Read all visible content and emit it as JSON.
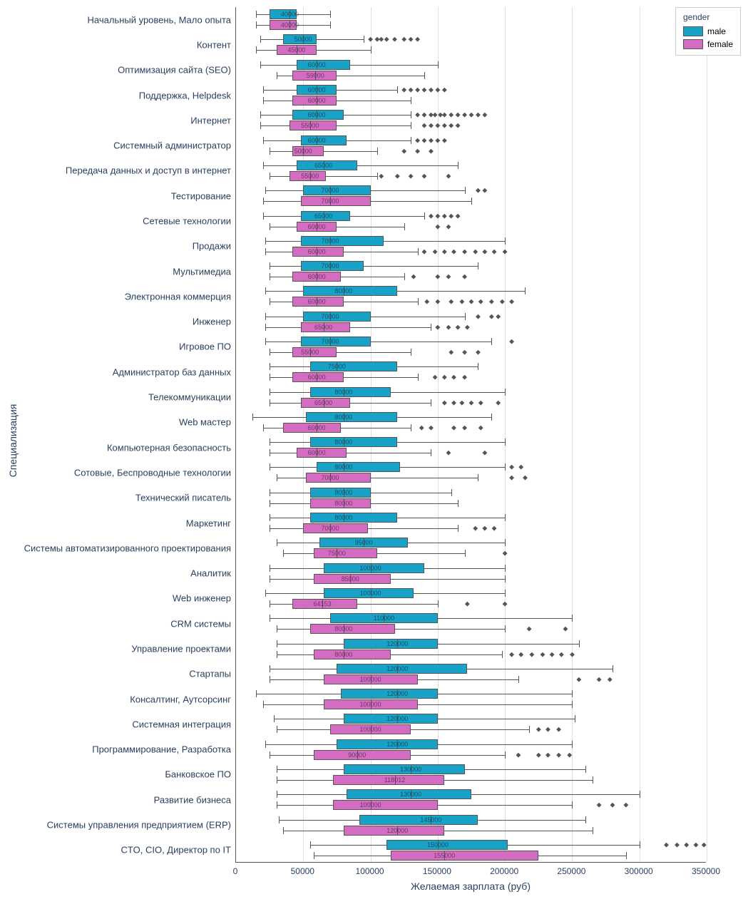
{
  "chart": {
    "type": "grouped-horizontal-boxplot",
    "x_axis_title": "Желаемая зарплата (руб)",
    "y_axis_title": "Специализация",
    "xlim": [
      0,
      350000
    ],
    "xtick_step": 50000,
    "background_color": "#ffffff",
    "grid_color": "#e0e0e0",
    "text_color": "#2a3f5f",
    "box_border_color": "#555555",
    "label_fontsize": 13,
    "axis_title_fontsize": 14,
    "median_label_fontsize": 9
  },
  "legend": {
    "title": "gender",
    "items": [
      {
        "label": "male",
        "color": "#18a2c8"
      },
      {
        "label": "female",
        "color": "#d46cc2"
      }
    ]
  },
  "colors": {
    "male": "#18a2c8",
    "female": "#d46cc2"
  },
  "x_ticks": [
    "0",
    "50000",
    "100000",
    "150000",
    "200000",
    "250000",
    "300000",
    "350000"
  ],
  "categories": [
    {
      "label": "Начальный уровень, Мало опыта",
      "male": {
        "low": 15000,
        "q1": 25000,
        "median": 40000,
        "q3": 45000,
        "high": 70000,
        "median_label": "40000",
        "outliers": []
      },
      "female": {
        "low": 15000,
        "q1": 25000,
        "median": 40000,
        "q3": 45000,
        "high": 70000,
        "median_label": "40000",
        "outliers": []
      }
    },
    {
      "label": "Контент",
      "male": {
        "low": 18000,
        "q1": 35000,
        "median": 50000,
        "q3": 60000,
        "high": 95000,
        "median_label": "50000",
        "outliers": [
          100000,
          105000,
          108000,
          112000,
          118000,
          125000,
          130000,
          135000
        ]
      },
      "female": {
        "low": 15000,
        "q1": 30000,
        "median": 45000,
        "q3": 60000,
        "high": 100000,
        "median_label": "45000",
        "outliers": []
      }
    },
    {
      "label": "Оптимизация сайта (SEO)",
      "male": {
        "low": 18000,
        "q1": 45000,
        "median": 60000,
        "q3": 85000,
        "high": 150000,
        "median_label": "60000",
        "outliers": []
      },
      "female": {
        "low": 30000,
        "q1": 42000,
        "median": 59000,
        "q3": 75000,
        "high": 140000,
        "median_label": "59000",
        "outliers": []
      }
    },
    {
      "label": "Поддержка, Helpdesk",
      "male": {
        "low": 20000,
        "q1": 45000,
        "median": 60000,
        "q3": 75000,
        "high": 120000,
        "median_label": "60000",
        "outliers": [
          125000,
          130000,
          135000,
          140000,
          145000,
          150000,
          155000
        ]
      },
      "female": {
        "low": 20000,
        "q1": 42000,
        "median": 60000,
        "q3": 75000,
        "high": 130000,
        "median_label": "60000",
        "outliers": []
      }
    },
    {
      "label": "Интернет",
      "male": {
        "low": 18000,
        "q1": 42000,
        "median": 60000,
        "q3": 80000,
        "high": 130000,
        "median_label": "60000",
        "outliers": [
          135000,
          140000,
          145000,
          148000,
          152000,
          155000,
          160000,
          165000,
          170000,
          175000,
          180000,
          185000
        ]
      },
      "female": {
        "low": 18000,
        "q1": 40000,
        "median": 55000,
        "q3": 75000,
        "high": 130000,
        "median_label": "55000",
        "outliers": [
          140000,
          145000,
          150000,
          155000,
          160000,
          165000
        ]
      }
    },
    {
      "label": "Системный администратор",
      "male": {
        "low": 20000,
        "q1": 48000,
        "median": 60000,
        "q3": 82000,
        "high": 130000,
        "median_label": "60000",
        "outliers": [
          135000,
          140000,
          145000,
          150000,
          155000
        ]
      },
      "female": {
        "low": 25000,
        "q1": 42000,
        "median": 50000,
        "q3": 65000,
        "high": 105000,
        "median_label": "50000",
        "outliers": [
          125000,
          135000,
          145000
        ]
      }
    },
    {
      "label": "Передача данных и доступ в интернет",
      "male": {
        "low": 20000,
        "q1": 45000,
        "median": 65000,
        "q3": 90000,
        "high": 165000,
        "median_label": "65000",
        "outliers": []
      },
      "female": {
        "low": 25000,
        "q1": 40000,
        "median": 55000,
        "q3": 67000,
        "high": 105000,
        "median_label": "55000",
        "outliers": [
          108000,
          120000,
          130000,
          140000,
          158000
        ]
      }
    },
    {
      "label": "Тестирование",
      "male": {
        "low": 22000,
        "q1": 50000,
        "median": 70000,
        "q3": 100000,
        "high": 170000,
        "median_label": "70000",
        "outliers": [
          180000,
          185000
        ]
      },
      "female": {
        "low": 20000,
        "q1": 48000,
        "median": 70000,
        "q3": 100000,
        "high": 175000,
        "median_label": "70000",
        "outliers": []
      }
    },
    {
      "label": "Сетевые технологии",
      "male": {
        "low": 20000,
        "q1": 48000,
        "median": 65000,
        "q3": 85000,
        "high": 140000,
        "median_label": "65000",
        "outliers": [
          145000,
          150000,
          155000,
          160000,
          165000
        ]
      },
      "female": {
        "low": 25000,
        "q1": 45000,
        "median": 60000,
        "q3": 75000,
        "high": 125000,
        "median_label": "60000",
        "outliers": [
          150000,
          158000
        ]
      }
    },
    {
      "label": "Продажи",
      "male": {
        "low": 22000,
        "q1": 48000,
        "median": 70000,
        "q3": 110000,
        "high": 200000,
        "median_label": "70000",
        "outliers": []
      },
      "female": {
        "low": 22000,
        "q1": 42000,
        "median": 60000,
        "q3": 80000,
        "high": 135000,
        "median_label": "60000",
        "outliers": [
          140000,
          148000,
          155000,
          162000,
          170000,
          178000,
          185000,
          192000,
          200000
        ]
      }
    },
    {
      "label": "Мультимедиа",
      "male": {
        "low": 25000,
        "q1": 48000,
        "median": 70000,
        "q3": 95000,
        "high": 180000,
        "median_label": "70000",
        "outliers": []
      },
      "female": {
        "low": 25000,
        "q1": 42000,
        "median": 60000,
        "q3": 78000,
        "high": 125000,
        "median_label": "60000",
        "outliers": [
          132000,
          150000,
          158000,
          170000
        ]
      }
    },
    {
      "label": "Электронная коммерция",
      "male": {
        "low": 22000,
        "q1": 50000,
        "median": 80000,
        "q3": 120000,
        "high": 215000,
        "median_label": "80000",
        "outliers": []
      },
      "female": {
        "low": 25000,
        "q1": 42000,
        "median": 60000,
        "q3": 80000,
        "high": 135000,
        "median_label": "60000",
        "outliers": [
          142000,
          150000,
          160000,
          168000,
          175000,
          182000,
          190000,
          198000,
          205000
        ]
      }
    },
    {
      "label": "Инженер",
      "male": {
        "low": 22000,
        "q1": 50000,
        "median": 70000,
        "q3": 100000,
        "high": 170000,
        "median_label": "70000",
        "outliers": [
          180000,
          190000,
          195000
        ]
      },
      "female": {
        "low": 22000,
        "q1": 48000,
        "median": 65000,
        "q3": 85000,
        "high": 145000,
        "median_label": "65000",
        "outliers": [
          150000,
          158000,
          165000,
          172000
        ]
      }
    },
    {
      "label": "Игровое ПО",
      "male": {
        "low": 22000,
        "q1": 48000,
        "median": 70000,
        "q3": 100000,
        "high": 190000,
        "median_label": "70000",
        "outliers": [
          205000
        ]
      },
      "female": {
        "low": 25000,
        "q1": 42000,
        "median": 55000,
        "q3": 75000,
        "high": 130000,
        "median_label": "55000",
        "outliers": [
          160000,
          170000,
          180000
        ]
      }
    },
    {
      "label": "Администратор баз данных",
      "male": {
        "low": 25000,
        "q1": 55000,
        "median": 75000,
        "q3": 120000,
        "high": 180000,
        "median_label": "75000",
        "outliers": []
      },
      "female": {
        "low": 25000,
        "q1": 42000,
        "median": 60000,
        "q3": 80000,
        "high": 135000,
        "median_label": "60000",
        "outliers": [
          148000,
          155000,
          162000,
          170000
        ]
      }
    },
    {
      "label": "Телекоммуникации",
      "male": {
        "low": 25000,
        "q1": 55000,
        "median": 80000,
        "q3": 115000,
        "high": 200000,
        "median_label": "80000",
        "outliers": []
      },
      "female": {
        "low": 25000,
        "q1": 48000,
        "median": 65000,
        "q3": 85000,
        "high": 145000,
        "median_label": "65000",
        "outliers": [
          155000,
          162000,
          168000,
          175000,
          182000,
          195000
        ]
      }
    },
    {
      "label": "Web мастер",
      "male": {
        "low": 12000,
        "q1": 52000,
        "median": 80000,
        "q3": 120000,
        "high": 190000,
        "median_label": "80000",
        "outliers": []
      },
      "female": {
        "low": 20000,
        "q1": 35000,
        "median": 60000,
        "q3": 78000,
        "high": 130000,
        "median_label": "60000",
        "outliers": [
          138000,
          145000,
          162000,
          170000,
          182000
        ]
      }
    },
    {
      "label": "Компьютерная безопасность",
      "male": {
        "low": 25000,
        "q1": 55000,
        "median": 80000,
        "q3": 120000,
        "high": 200000,
        "median_label": "80000",
        "outliers": []
      },
      "female": {
        "low": 25000,
        "q1": 45000,
        "median": 60000,
        "q3": 82000,
        "high": 145000,
        "median_label": "60000",
        "outliers": [
          158000,
          185000
        ]
      }
    },
    {
      "label": "Сотовые, Беспроводные технологии",
      "male": {
        "low": 25000,
        "q1": 60000,
        "median": 80000,
        "q3": 122000,
        "high": 200000,
        "median_label": "80000",
        "outliers": [
          205000,
          212000
        ]
      },
      "female": {
        "low": 30000,
        "q1": 52000,
        "median": 70000,
        "q3": 100000,
        "high": 180000,
        "median_label": "70000",
        "outliers": [
          205000,
          215000
        ]
      }
    },
    {
      "label": "Технический писатель",
      "male": {
        "low": 25000,
        "q1": 55000,
        "median": 80000,
        "q3": 100000,
        "high": 160000,
        "median_label": "80000",
        "outliers": []
      },
      "female": {
        "low": 25000,
        "q1": 55000,
        "median": 80000,
        "q3": 100000,
        "high": 165000,
        "median_label": "80000",
        "outliers": []
      }
    },
    {
      "label": "Маркетинг",
      "male": {
        "low": 25000,
        "q1": 55000,
        "median": 80000,
        "q3": 120000,
        "high": 200000,
        "median_label": "80000",
        "outliers": []
      },
      "female": {
        "low": 25000,
        "q1": 50000,
        "median": 70000,
        "q3": 98000,
        "high": 165000,
        "median_label": "70000",
        "outliers": [
          178000,
          185000,
          192000
        ]
      }
    },
    {
      "label": "Системы автоматизированного проектирования",
      "male": {
        "low": 30000,
        "q1": 62000,
        "median": 95000,
        "q3": 128000,
        "high": 200000,
        "median_label": "95000",
        "outliers": []
      },
      "female": {
        "low": 35000,
        "q1": 58000,
        "median": 75000,
        "q3": 105000,
        "high": 170000,
        "median_label": "75000",
        "outliers": [
          200000
        ]
      }
    },
    {
      "label": "Аналитик",
      "male": {
        "low": 25000,
        "q1": 65000,
        "median": 100000,
        "q3": 140000,
        "high": 200000,
        "median_label": "100000",
        "outliers": []
      },
      "female": {
        "low": 25000,
        "q1": 58000,
        "median": 85000,
        "q3": 115000,
        "high": 200000,
        "median_label": "85000",
        "outliers": []
      }
    },
    {
      "label": "Web инженер",
      "male": {
        "low": 22000,
        "q1": 65000,
        "median": 100000,
        "q3": 132000,
        "high": 200000,
        "median_label": "100000",
        "outliers": []
      },
      "female": {
        "low": 25000,
        "q1": 42000,
        "median": 64153,
        "q3": 90000,
        "high": 150000,
        "median_label": "64153",
        "outliers": [
          172000,
          200000
        ]
      }
    },
    {
      "label": "CRM системы",
      "male": {
        "low": 25000,
        "q1": 70000,
        "median": 110000,
        "q3": 150000,
        "high": 250000,
        "median_label": "110000",
        "outliers": []
      },
      "female": {
        "low": 30000,
        "q1": 55000,
        "median": 80000,
        "q3": 118000,
        "high": 200000,
        "median_label": "80000",
        "outliers": [
          218000,
          245000
        ]
      }
    },
    {
      "label": "Управление проектами",
      "male": {
        "low": 30000,
        "q1": 80000,
        "median": 120000,
        "q3": 150000,
        "high": 255000,
        "median_label": "120000",
        "outliers": []
      },
      "female": {
        "low": 30000,
        "q1": 58000,
        "median": 80000,
        "q3": 115000,
        "high": 198000,
        "median_label": "80000",
        "outliers": [
          205000,
          212000,
          220000,
          228000,
          235000,
          242000,
          250000
        ]
      }
    },
    {
      "label": "Стартапы",
      "male": {
        "low": 25000,
        "q1": 75000,
        "median": 120000,
        "q3": 172000,
        "high": 280000,
        "median_label": "120000",
        "outliers": []
      },
      "female": {
        "low": 25000,
        "q1": 65000,
        "median": 100000,
        "q3": 135000,
        "high": 210000,
        "median_label": "100000",
        "outliers": [
          255000,
          270000,
          278000
        ]
      }
    },
    {
      "label": "Консалтинг, Аутсорсинг",
      "male": {
        "low": 15000,
        "q1": 78000,
        "median": 120000,
        "q3": 150000,
        "high": 250000,
        "median_label": "120000",
        "outliers": []
      },
      "female": {
        "low": 20000,
        "q1": 65000,
        "median": 100000,
        "q3": 135000,
        "high": 250000,
        "median_label": "100000",
        "outliers": []
      }
    },
    {
      "label": "Системная интеграция",
      "male": {
        "low": 28000,
        "q1": 80000,
        "median": 120000,
        "q3": 150000,
        "high": 252000,
        "median_label": "120000",
        "outliers": []
      },
      "female": {
        "low": 30000,
        "q1": 70000,
        "median": 100000,
        "q3": 130000,
        "high": 218000,
        "median_label": "100000",
        "outliers": [
          225000,
          232000,
          240000
        ]
      }
    },
    {
      "label": "Программирование, Разработка",
      "male": {
        "low": 22000,
        "q1": 75000,
        "median": 120000,
        "q3": 150000,
        "high": 250000,
        "median_label": "120000",
        "outliers": []
      },
      "female": {
        "low": 25000,
        "q1": 58000,
        "median": 90000,
        "q3": 130000,
        "high": 200000,
        "median_label": "90000",
        "outliers": [
          210000,
          225000,
          232000,
          240000,
          248000
        ]
      }
    },
    {
      "label": "Банковское ПО",
      "male": {
        "low": 30000,
        "q1": 80000,
        "median": 130000,
        "q3": 170000,
        "high": 260000,
        "median_label": "130000",
        "outliers": []
      },
      "female": {
        "low": 30000,
        "q1": 72000,
        "median": 118012,
        "q3": 155000,
        "high": 265000,
        "median_label": "118012",
        "outliers": []
      }
    },
    {
      "label": "Развитие бизнеса",
      "male": {
        "low": 30000,
        "q1": 82000,
        "median": 130000,
        "q3": 175000,
        "high": 300000,
        "median_label": "130000",
        "outliers": []
      },
      "female": {
        "low": 30000,
        "q1": 72000,
        "median": 100000,
        "q3": 150000,
        "high": 250000,
        "median_label": "100000",
        "outliers": [
          270000,
          280000,
          290000
        ]
      }
    },
    {
      "label": "Системы управления предприятием (ERP)",
      "male": {
        "low": 32000,
        "q1": 92000,
        "median": 145000,
        "q3": 180000,
        "high": 260000,
        "median_label": "145000",
        "outliers": []
      },
      "female": {
        "low": 35000,
        "q1": 80000,
        "median": 120000,
        "q3": 155000,
        "high": 265000,
        "median_label": "120000",
        "outliers": []
      }
    },
    {
      "label": "CTO, CIO, Директор по IT",
      "male": {
        "low": 55000,
        "q1": 112000,
        "median": 150000,
        "q3": 202000,
        "high": 300000,
        "median_label": "150000",
        "outliers": [
          320000,
          328000,
          335000,
          342000,
          348000
        ]
      },
      "female": {
        "low": 58000,
        "q1": 115000,
        "median": 155000,
        "q3": 225000,
        "high": 290000,
        "median_label": "155000",
        "outliers": []
      }
    }
  ]
}
